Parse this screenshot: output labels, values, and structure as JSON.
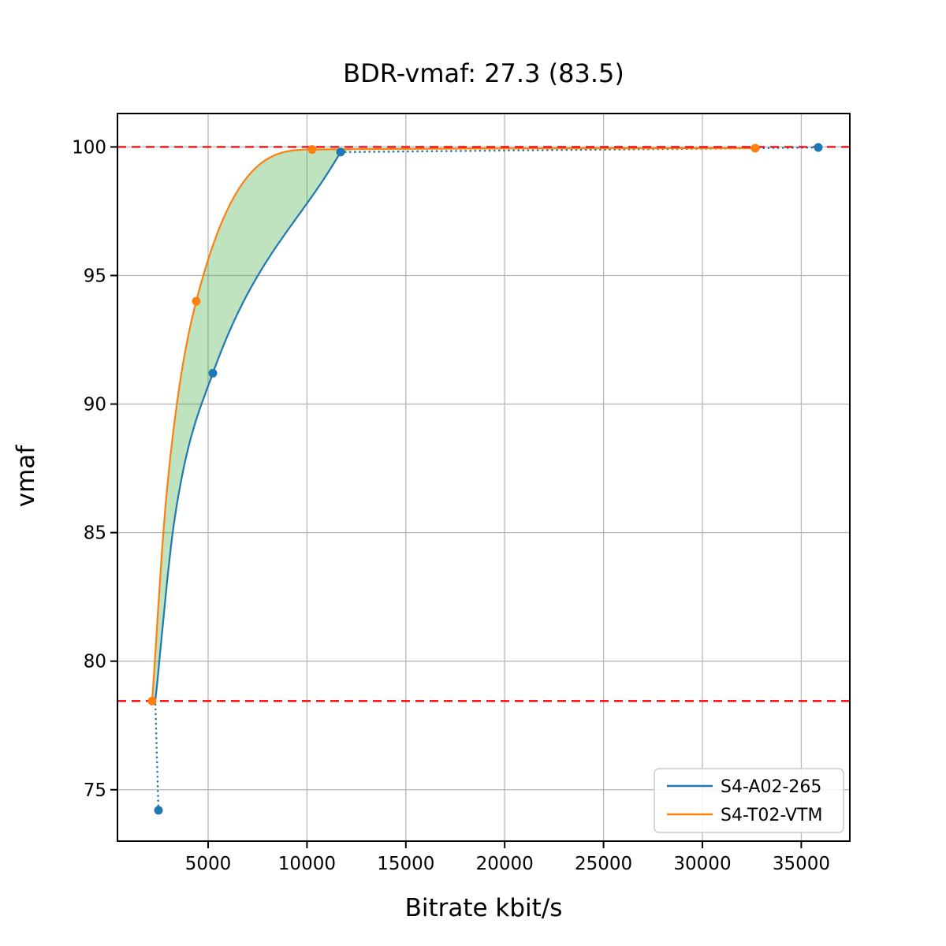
{
  "figure": {
    "title": "BDR-vmaf: 27.3 (83.5)",
    "xlabel": "Bitrate kbit/s",
    "ylabel": "vmaf"
  },
  "chart_data": {
    "type": "line",
    "title": "BDR-vmaf: 27.3 (83.5)",
    "xlabel": "Bitrate kbit/s",
    "ylabel": "vmaf",
    "xlim": [
      415,
      37456
    ],
    "ylim": [
      73.0,
      101.3
    ],
    "xticks": [
      5000,
      10000,
      15000,
      20000,
      25000,
      30000,
      35000
    ],
    "yticks": [
      75,
      80,
      85,
      90,
      95,
      100
    ],
    "grid": true,
    "grid_color": "#b8b8b8",
    "spine_color": "#000000",
    "legend": {
      "position": "lower right",
      "entries": [
        "S4-A02-265",
        "S4-T02-VTM"
      ]
    },
    "series": [
      {
        "name": "S4-A02-265",
        "color": "#1f77b4",
        "markers": [
          [
            2490,
            74.2
          ],
          [
            5240,
            91.2
          ],
          [
            11700,
            99.8
          ],
          [
            35860,
            99.98
          ]
        ],
        "segments": [
          {
            "style": "dotted",
            "smooth": false,
            "pts": [
              [
                2490,
                74.2
              ],
              [
                2330,
                78.45
              ]
            ]
          },
          {
            "style": "solid",
            "smooth": true,
            "pts": [
              [
                2330,
                78.45
              ],
              [
                3300,
                85.5
              ],
              [
                5240,
                91.2
              ],
              [
                11700,
                99.8
              ]
            ]
          },
          {
            "style": "dotted",
            "smooth": false,
            "pts": [
              [
                11700,
                99.8
              ],
              [
                35860,
                99.98
              ]
            ]
          }
        ]
      },
      {
        "name": "S4-T02-VTM",
        "color": "#ff7f0e",
        "markers": [
          [
            2170,
            78.45
          ],
          [
            4400,
            94.0
          ],
          [
            10260,
            99.9
          ],
          [
            32670,
            99.95
          ]
        ],
        "segments": [
          {
            "style": "solid",
            "smooth": true,
            "pts": [
              [
                2170,
                78.45
              ],
              [
                2900,
                86.5
              ],
              [
                4400,
                94.0
              ],
              [
                10260,
                99.9
              ],
              [
                32670,
                99.95
              ]
            ]
          }
        ]
      }
    ],
    "hlines": [
      {
        "value": 100.0,
        "color": "#ff0000",
        "style": "dashed"
      },
      {
        "value": 78.45,
        "color": "#ff0000",
        "style": "dashed"
      }
    ],
    "fill_between": {
      "color": "#2ca02c",
      "opacity": 0.3,
      "upper": [
        [
          2170,
          78.45
        ],
        [
          2900,
          86.5
        ],
        [
          4400,
          94.0
        ],
        [
          10260,
          99.9
        ],
        [
          12600,
          99.91
        ]
      ],
      "lower": [
        [
          2330,
          78.45
        ],
        [
          3300,
          85.5
        ],
        [
          5240,
          91.2
        ],
        [
          11700,
          99.8
        ]
      ]
    }
  }
}
